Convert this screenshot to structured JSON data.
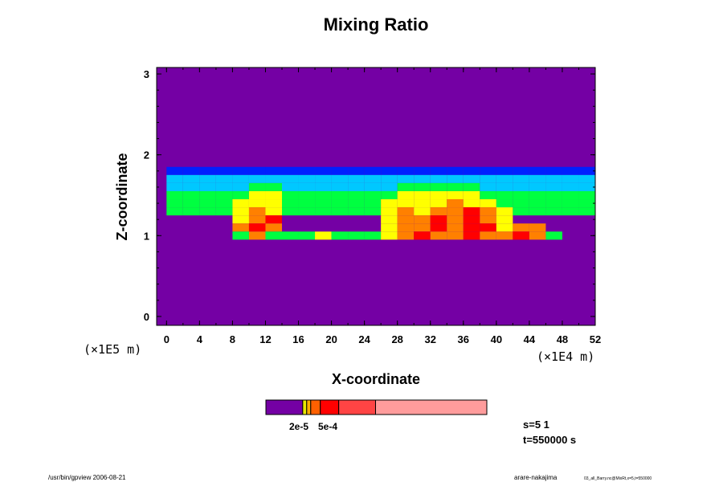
{
  "chart_data": {
    "type": "heatmap",
    "title": "Mixing Ratio",
    "xlabel": "X-coordinate",
    "ylabel": "Z-coordinate",
    "x_scale_label": "(×1E4 m)",
    "y_scale_label": "(×1E5 m)",
    "xlim": [
      -1.2,
      52
    ],
    "ylim": [
      -0.11,
      3.08
    ],
    "xticks": [
      "0",
      "4",
      "8",
      "12",
      "16",
      "20",
      "24",
      "28",
      "32",
      "36",
      "40",
      "44",
      "48",
      "52"
    ],
    "yticks": [
      "0",
      "1",
      "2",
      "3"
    ],
    "grid": {
      "x_start": 0,
      "x_step": 2,
      "z_rows": [
        1.8,
        1.7,
        1.6,
        1.5,
        1.4,
        1.3,
        1.2,
        1.1,
        1.0
      ],
      "z_half_height": 0.05,
      "levels": [
        "11111111111111111111111111",
        "22222222222222222222222222",
        "22222332222222333332222222",
        "33333443333333444443333333",
        "33334443333334444544333333",
        "33334543333334545565433333",
        "00004560000004556565400000",
        "00005650000004556566455000",
        "00003533343334565565565300"
      ]
    },
    "background_level": 0,
    "level_colors": [
      "#7400a4",
      "#0020ff",
      "#00c8ff",
      "#00ff40",
      "#ffff00",
      "#ff8000",
      "#ff0000"
    ],
    "colorbar": {
      "segments": [
        {
          "color": "#7400a4",
          "weight": 46
        },
        {
          "color": "#e8e800",
          "weight": 5
        },
        {
          "color": "#ffb000",
          "weight": 5
        },
        {
          "color": "#ff6000",
          "weight": 12
        },
        {
          "color": "#ff0000",
          "weight": 23
        },
        {
          "color": "#ff4444",
          "weight": 46
        },
        {
          "color": "#ff9c9c",
          "weight": 139
        }
      ],
      "labels": [
        "2e-5",
        "5e-4"
      ]
    },
    "annotations": {
      "s": "s=5 1",
      "t": "t=550000 s",
      "footer_left": "/usr/bin/gpview 2006-08-21",
      "footer_right": "arare-nakajima",
      "footer_right_small": "03_all_Barry.nc@MixRt,x=5,t=550000"
    }
  }
}
